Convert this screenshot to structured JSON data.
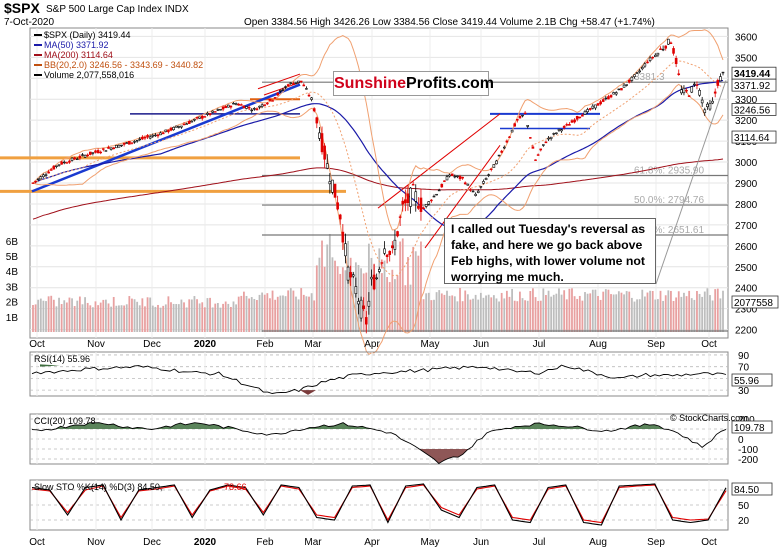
{
  "header": {
    "symbol": "$SPX",
    "name": "S&P 500 Large Cap Index",
    "exchange": "INDX",
    "date": "7-Oct-2020",
    "ohlc": "Open 3384.56  High 3426.26  Low 3384.56  Close 3419.44  Volume 2.1B  Chg +58.47 (+1.74%)",
    "stockcharts": "© StockCharts.com"
  },
  "legend": {
    "price": "$SPX (Daily) 3419.44",
    "ma50": "MA(50) 3371.92",
    "ma200": "MA(200) 3114.64",
    "bb": "BB(20,2.0) 3246.56 - 3343.69 - 3440.82",
    "volume": "Volume 2,077,558,016"
  },
  "brand": {
    "part1": "Sunshine",
    "part2": "Profits.com"
  },
  "annotation": "I called out Tuesday's  reversal as fake, and here we go back above Feb highs, with lower volume not worrying me much.",
  "colors": {
    "up": "#000000",
    "down": "#e00000",
    "ma50": "#1a1aa8",
    "ma200": "#a0101a",
    "bb": "#f0a070",
    "volume": "#e8a0a0",
    "horizontal": "#f0a040",
    "trendline": "#1a3ad0",
    "osc_fill": "#3e6e3e",
    "osc_fill_neg": "#7a3a3a"
  },
  "chart_data": [
    {
      "type": "line",
      "title": "$SPX Daily",
      "x_labels": [
        "Oct",
        "Nov",
        "Dec",
        "2020",
        "Feb",
        "Mar",
        "Apr",
        "May",
        "Jun",
        "Jul",
        "Aug",
        "Sep",
        "Oct"
      ],
      "y_ticks": [
        2200,
        2300,
        2400,
        2500,
        2600,
        2700,
        2800,
        2900,
        3000,
        3100,
        3200,
        3300,
        3400,
        3500,
        3600
      ],
      "ylim": [
        2160,
        3640
      ],
      "price_labels": [
        "3419.44",
        "3371.92",
        "3246.56",
        "3114.64"
      ],
      "close_points": [
        {
          "x": "Oct",
          "y": 2940
        },
        {
          "x": "Nov",
          "y": 3075
        },
        {
          "x": "Dec",
          "y": 3145
        },
        {
          "x": "2020",
          "y": 3240
        },
        {
          "x": "Feb",
          "y": 3250
        },
        {
          "x": "Feb",
          "y": 3380
        },
        {
          "x": "Mar",
          "y": 2950
        },
        {
          "x": "Mar",
          "y": 2240
        },
        {
          "x": "Apr",
          "y": 2760
        },
        {
          "x": "May",
          "y": 2900
        },
        {
          "x": "Jun",
          "y": 3150
        },
        {
          "x": "Jul",
          "y": 3180
        },
        {
          "x": "Aug",
          "y": 3300
        },
        {
          "x": "Sep",
          "y": 3580
        },
        {
          "x": "Sep",
          "y": 3250
        },
        {
          "x": "Oct",
          "y": 3419
        }
      ],
      "fib_levels": [
        {
          "label": "61.8%: 2935.90",
          "value": 2935.9
        },
        {
          "label": "50.0%: 2794.76",
          "value": 2794.76
        },
        {
          "label": "38.2%: 2651.61",
          "value": 2651.61
        },
        {
          "label": "3381.3",
          "value": 3381.3
        }
      ],
      "volume_ticks": [
        "1B",
        "2B",
        "3B",
        "4B",
        "5B",
        "6B"
      ],
      "volume_label": "2077558"
    },
    {
      "type": "line",
      "title": "RSI(14) 55.96",
      "y_ticks": [
        30,
        50,
        70,
        90
      ],
      "ylim": [
        20,
        95
      ],
      "last": "55.96",
      "values": [
        60,
        62,
        66,
        68,
        70,
        66,
        60,
        58,
        40,
        22,
        30,
        45,
        55,
        60,
        62,
        65,
        68,
        70,
        62,
        60,
        72,
        60,
        50,
        56,
        55,
        58,
        56
      ]
    },
    {
      "type": "area",
      "title": "CCI(20) 109.78",
      "y_ticks": [
        -200,
        -100,
        0,
        100,
        200
      ],
      "ylim": [
        -250,
        250
      ],
      "last": "109.78",
      "values": [
        80,
        110,
        150,
        160,
        120,
        100,
        140,
        160,
        120,
        80,
        40,
        90,
        130,
        150,
        110,
        60,
        -80,
        -240,
        -150,
        60,
        120,
        150,
        140,
        110,
        80,
        120,
        150,
        60,
        -80,
        110
      ]
    },
    {
      "type": "line",
      "title": "Slow STO %K(14) %D(3) 84.50, 78.66",
      "y_ticks": [
        20,
        50,
        80
      ],
      "ylim": [
        0,
        100
      ],
      "series": [
        {
          "name": "%K(14)",
          "last": "84.50",
          "color": "#000000"
        },
        {
          "name": "%D(3)",
          "last": "78.66",
          "color": "#e00000"
        }
      ],
      "values_k": [
        85,
        80,
        30,
        85,
        90,
        20,
        80,
        85,
        90,
        25,
        80,
        90,
        85,
        30,
        90,
        85,
        25,
        20,
        88,
        90,
        15,
        88,
        92,
        40,
        25,
        85,
        90,
        20,
        15,
        85,
        90,
        15,
        10,
        88,
        90,
        92,
        20,
        15,
        20,
        84.5
      ],
      "values_d": [
        82,
        78,
        35,
        80,
        88,
        25,
        78,
        82,
        88,
        30,
        78,
        88,
        82,
        35,
        88,
        82,
        30,
        25,
        85,
        88,
        20,
        85,
        90,
        45,
        30,
        82,
        88,
        25,
        20,
        82,
        88,
        20,
        15,
        85,
        88,
        90,
        25,
        20,
        22,
        78.66
      ]
    }
  ]
}
